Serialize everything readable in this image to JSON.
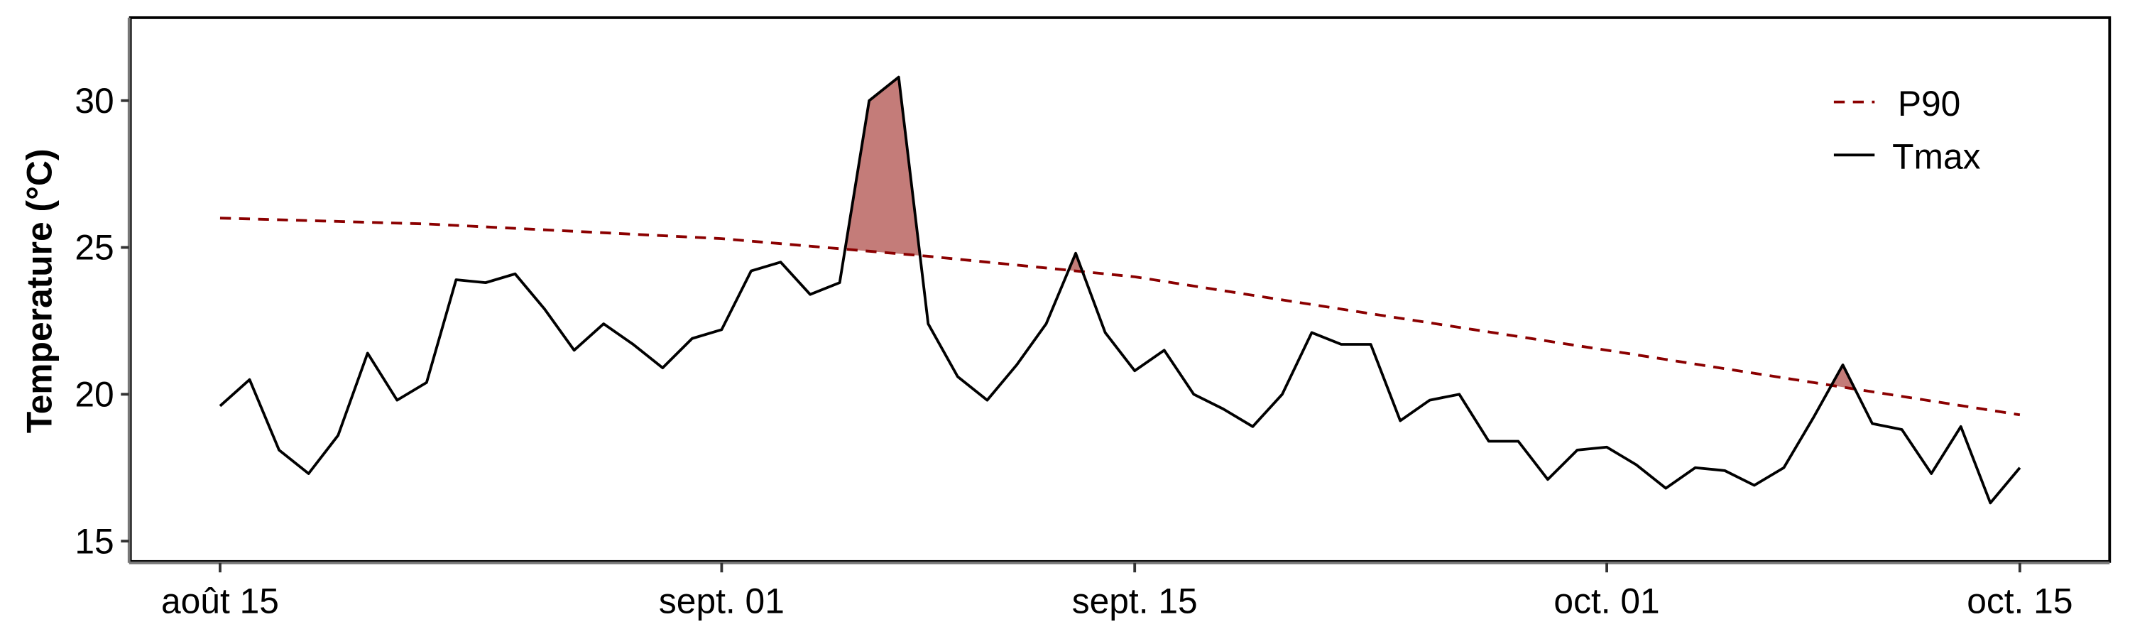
{
  "chart_data": {
    "type": "line",
    "title": "",
    "xlabel": "",
    "ylabel": "Temperature (°C)",
    "ylim": [
      14.5,
      33
    ],
    "yticks": [
      15,
      20,
      25,
      30
    ],
    "xticks": [
      {
        "label": "août 15",
        "day": 0
      },
      {
        "label": "sept. 01",
        "day": 17
      },
      {
        "label": "sept. 15",
        "day": 31
      },
      {
        "label": "oct. 01",
        "day": 47
      },
      {
        "label": "oct. 15",
        "day": 61
      }
    ],
    "grid": false,
    "legend_position": "top-right",
    "series": [
      {
        "name": "Tmax",
        "style": "solid",
        "color": "#000000",
        "values": [
          19.6,
          20.5,
          18.1,
          17.3,
          18.6,
          21.4,
          19.8,
          20.4,
          23.9,
          23.8,
          24.1,
          22.9,
          21.5,
          22.4,
          21.7,
          20.9,
          21.9,
          22.2,
          24.2,
          24.5,
          23.4,
          23.8,
          30.0,
          30.8,
          22.4,
          20.6,
          19.8,
          21.0,
          22.4,
          24.8,
          22.1,
          20.8,
          21.5,
          20.0,
          19.5,
          18.9,
          20.0,
          22.1,
          21.7,
          21.7,
          19.1,
          19.8,
          20.0,
          18.4,
          18.4,
          17.1,
          18.1,
          18.2,
          17.6,
          16.8,
          17.5,
          17.4,
          16.9,
          17.5,
          19.2,
          21.0,
          19.0,
          18.8,
          17.3,
          18.9,
          16.3,
          17.5
        ]
      },
      {
        "name": "P90",
        "style": "dashed",
        "color": "#8b0000",
        "points": [
          {
            "day": 0,
            "value": 26.0
          },
          {
            "day": 7,
            "value": 25.8
          },
          {
            "day": 17,
            "value": 25.3
          },
          {
            "day": 24,
            "value": 24.7
          },
          {
            "day": 31,
            "value": 24.0
          },
          {
            "day": 38,
            "value": 22.9
          },
          {
            "day": 47,
            "value": 21.5
          },
          {
            "day": 54,
            "value": 20.4
          },
          {
            "day": 61,
            "value": 19.3
          }
        ]
      }
    ],
    "exceedance_fill_color": "#c47c79"
  }
}
